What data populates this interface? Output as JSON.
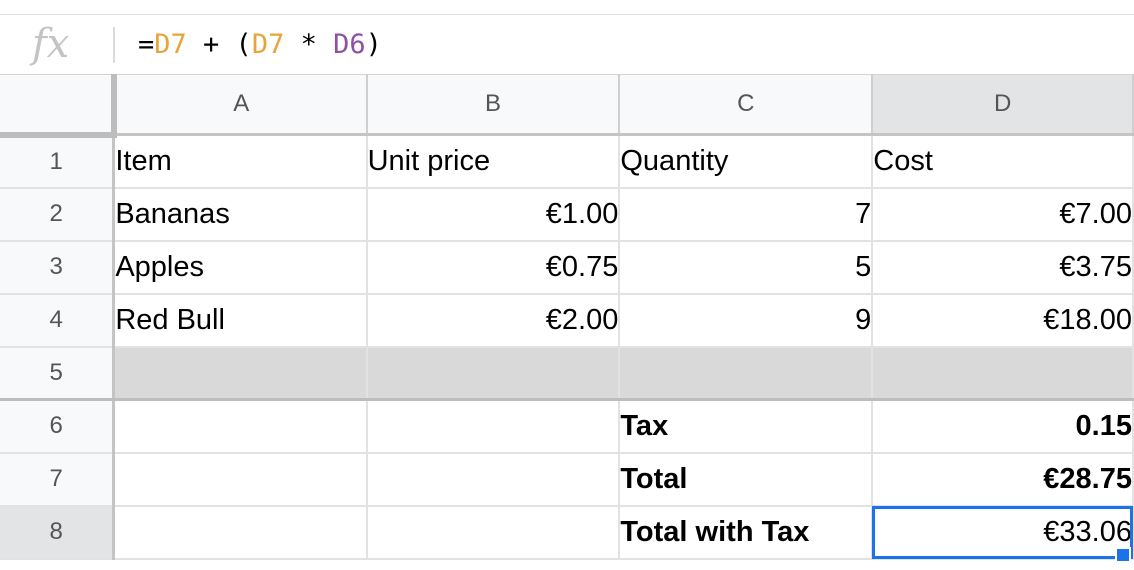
{
  "formula_bar": {
    "fx_label": "fx",
    "tokens": [
      {
        "text": "=",
        "color": "default"
      },
      {
        "text": "D7",
        "color": "orange"
      },
      {
        "text": " + (",
        "color": "default"
      },
      {
        "text": "D7",
        "color": "orange"
      },
      {
        "text": " * ",
        "color": "default"
      },
      {
        "text": "D6",
        "color": "purple"
      },
      {
        "text": ")",
        "color": "default"
      }
    ]
  },
  "columns": [
    "A",
    "B",
    "C",
    "D"
  ],
  "rows": [
    {
      "num": "1",
      "cells": [
        "Item",
        "Unit price",
        "Quantity",
        "Cost"
      ]
    },
    {
      "num": "2",
      "cells": [
        "Bananas",
        "€1.00",
        "7",
        "€7.00"
      ]
    },
    {
      "num": "3",
      "cells": [
        "Apples",
        "€0.75",
        "5",
        "€3.75"
      ]
    },
    {
      "num": "4",
      "cells": [
        "Red Bull",
        "€2.00",
        "9",
        "€18.00"
      ]
    },
    {
      "num": "5",
      "cells": [
        "",
        "",
        "",
        ""
      ]
    },
    {
      "num": "6",
      "cells": [
        "",
        "",
        "Tax",
        "0.15"
      ]
    },
    {
      "num": "7",
      "cells": [
        "",
        "",
        "Total",
        "€28.75"
      ]
    },
    {
      "num": "8",
      "cells": [
        "",
        "",
        "Total with Tax",
        "€33.06"
      ]
    }
  ],
  "selection": {
    "cell": "D8"
  },
  "colors": {
    "accent": "#1a73e8",
    "ref_orange": "#e8a33b",
    "ref_purple": "#8f4fa3"
  }
}
